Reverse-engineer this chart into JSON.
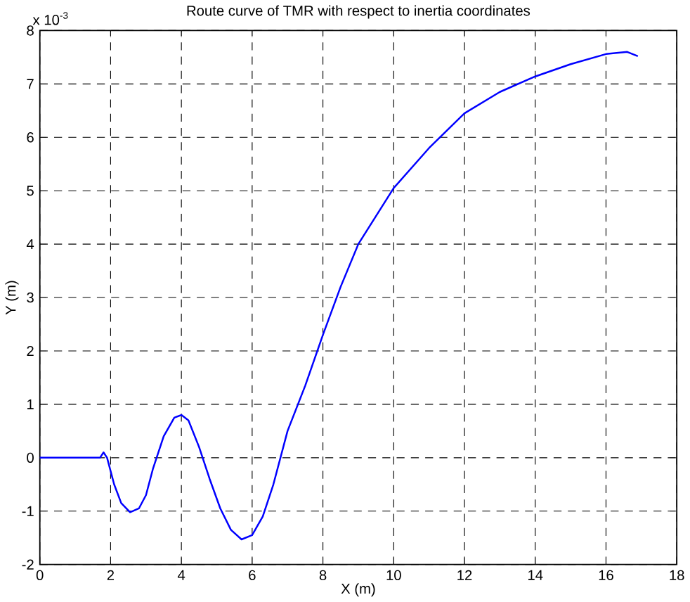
{
  "chart_data": {
    "type": "line",
    "title": "Route curve of TMR with respect to inertia coordinates",
    "xlabel": "X (m)",
    "ylabel": "Y (m)",
    "annotations": [
      "x 10$^{-3}$"
    ],
    "xlim": [
      0,
      18
    ],
    "xticks": [
      0,
      2,
      4,
      6,
      8,
      10,
      12,
      14,
      16,
      18
    ],
    "ylim": [
      -2,
      8
    ],
    "yticks": [
      -2,
      -1,
      0,
      1,
      2,
      3,
      4,
      5,
      6,
      7,
      8
    ],
    "grid": true,
    "series": [
      {
        "color": "#0000ff",
        "line_style": "solid",
        "x": [
          0,
          1.7,
          1.8,
          1.9,
          2.1,
          2.3,
          2.55,
          2.8,
          3.0,
          3.2,
          3.5,
          3.8,
          4.0,
          4.2,
          4.5,
          4.8,
          5.1,
          5.4,
          5.7,
          6.0,
          6.3,
          6.6,
          7.0,
          7.5,
          8.0,
          8.5,
          9.0,
          10,
          11,
          12,
          13,
          14,
          15,
          16,
          16.6,
          16.9
        ],
        "values": [
          0,
          0,
          0.1,
          0,
          -0.5,
          -0.85,
          -1.02,
          -0.95,
          -0.7,
          -0.2,
          0.4,
          0.75,
          0.8,
          0.7,
          0.2,
          -0.4,
          -0.95,
          -1.35,
          -1.53,
          -1.45,
          -1.1,
          -0.5,
          0.5,
          1.35,
          2.3,
          3.2,
          4.0,
          5.05,
          5.8,
          6.45,
          6.85,
          7.14,
          7.37,
          7.56,
          7.6,
          7.52
        ]
      }
    ]
  }
}
